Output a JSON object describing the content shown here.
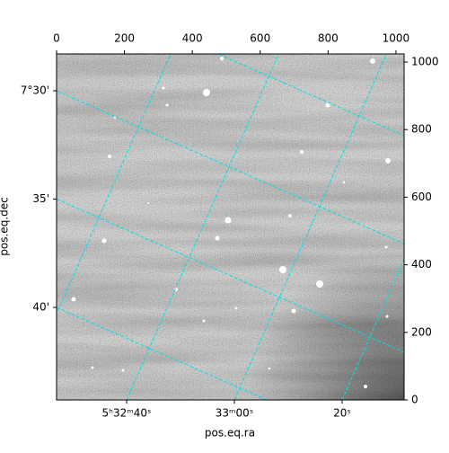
{
  "chart_data": {
    "type": "image",
    "xlabel": "pos.eq.ra",
    "ylabel": "pos.eq.dec",
    "xlim": [
      0,
      1024
    ],
    "ylim": [
      0,
      1024
    ],
    "xticks": [
      0,
      200,
      400,
      600,
      800,
      1000
    ],
    "yticks": [
      0,
      200,
      400,
      600,
      800,
      1000
    ],
    "ra_ticks": [
      {
        "value": 83.16667,
        "label": "5ʰ32ᵐ40ˢ"
      },
      {
        "value": 83.25,
        "label": "33ᵐ00ˢ"
      },
      {
        "value": 83.33333,
        "label": "20ˢ"
      }
    ],
    "dec_ticks": [
      {
        "value": 7.5,
        "label": "7°30'"
      },
      {
        "value": 7.58333,
        "label": "35'"
      },
      {
        "value": 7.66667,
        "label": "40'"
      }
    ],
    "grid": true,
    "grid_color": "#00e0e0"
  }
}
